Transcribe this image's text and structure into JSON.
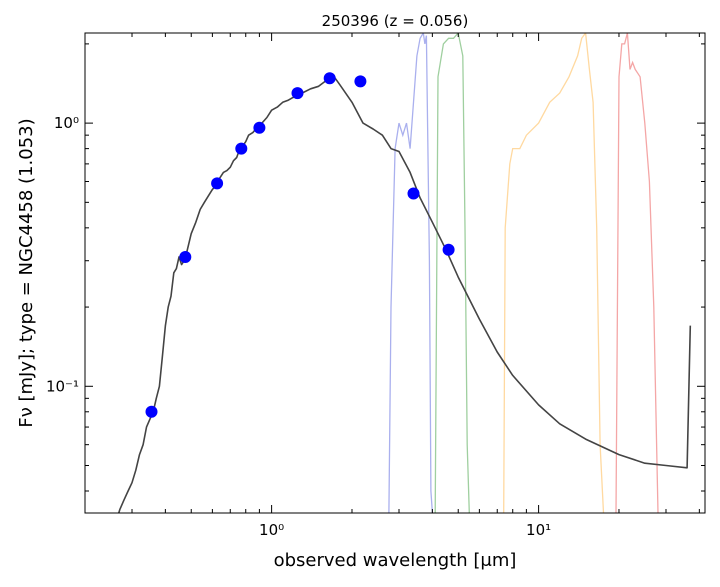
{
  "chart_data": {
    "type": "scatter",
    "title": "250396 (z = 0.056)",
    "xlabel": "observed wavelength [μm]",
    "ylabel": "Fν [mJy];  type = NGC4458 (1.053)",
    "xscale": "log",
    "yscale": "log",
    "xlim": [
      0.2,
      42
    ],
    "ylim": [
      0.033,
      2.2
    ],
    "x_ticks": [
      {
        "value": 1,
        "label": "10⁰"
      },
      {
        "value": 10,
        "label": "10¹"
      }
    ],
    "y_ticks": [
      {
        "value": 0.1,
        "label": "10⁻¹"
      },
      {
        "value": 1,
        "label": "10⁰"
      }
    ],
    "grid": false,
    "photometry": {
      "color": "#0000ff",
      "x": [
        0.355,
        0.475,
        0.625,
        0.77,
        0.9,
        1.25,
        1.65,
        2.15,
        3.4,
        4.6
      ],
      "y": [
        0.08,
        0.31,
        0.59,
        0.8,
        0.96,
        1.3,
        1.48,
        1.44,
        0.54,
        0.33
      ]
    },
    "sed_model": {
      "color": "#444444",
      "x": [
        0.26,
        0.27,
        0.28,
        0.29,
        0.3,
        0.31,
        0.32,
        0.33,
        0.34,
        0.35,
        0.36,
        0.37,
        0.38,
        0.39,
        0.4,
        0.41,
        0.42,
        0.43,
        0.44,
        0.45,
        0.46,
        0.47,
        0.48,
        0.5,
        0.52,
        0.54,
        0.56,
        0.58,
        0.6,
        0.62,
        0.64,
        0.66,
        0.68,
        0.7,
        0.72,
        0.74,
        0.76,
        0.78,
        0.8,
        0.82,
        0.85,
        0.88,
        0.92,
        0.96,
        1.0,
        1.05,
        1.1,
        1.15,
        1.2,
        1.3,
        1.4,
        1.5,
        1.6,
        1.65,
        1.7,
        1.8,
        2.0,
        2.2,
        2.4,
        2.6,
        2.8,
        3.0,
        3.3,
        3.6,
        4.0,
        4.5,
        5.0,
        6.0,
        7.0,
        8.0,
        10.0,
        12.0,
        15.0,
        20.0,
        25.0,
        30.0,
        36.0,
        37.0
      ],
      "y": [
        0.03,
        0.034,
        0.037,
        0.04,
        0.043,
        0.048,
        0.055,
        0.06,
        0.07,
        0.075,
        0.08,
        0.09,
        0.1,
        0.13,
        0.17,
        0.2,
        0.22,
        0.27,
        0.28,
        0.31,
        0.29,
        0.3,
        0.32,
        0.38,
        0.42,
        0.47,
        0.5,
        0.53,
        0.56,
        0.58,
        0.62,
        0.65,
        0.66,
        0.68,
        0.72,
        0.74,
        0.8,
        0.82,
        0.85,
        0.9,
        0.92,
        0.96,
        1.0,
        1.05,
        1.12,
        1.15,
        1.2,
        1.22,
        1.25,
        1.3,
        1.35,
        1.38,
        1.45,
        1.5,
        1.52,
        1.4,
        1.2,
        1.0,
        0.95,
        0.9,
        0.8,
        0.78,
        0.65,
        0.52,
        0.42,
        0.33,
        0.26,
        0.18,
        0.135,
        0.11,
        0.085,
        0.072,
        0.063,
        0.055,
        0.051,
        0.05,
        0.049,
        0.17
      ]
    },
    "filters": [
      {
        "color": "#aab0ee",
        "x": [
          2.75,
          2.8,
          2.9,
          3.0,
          3.1,
          3.2,
          3.3,
          3.4,
          3.5,
          3.6,
          3.7,
          3.75,
          3.8,
          3.9,
          3.95,
          4.0
        ],
        "y": [
          0.033,
          0.2,
          0.8,
          1.0,
          0.9,
          1.0,
          0.8,
          1.2,
          1.8,
          2.1,
          2.2,
          2.0,
          2.15,
          0.3,
          0.04,
          0.033
        ]
      },
      {
        "color": "#9fcf9f",
        "x": [
          4.1,
          4.2,
          4.4,
          4.6,
          4.8,
          5.0,
          5.2,
          5.3,
          5.4,
          5.5
        ],
        "y": [
          0.033,
          1.5,
          2.0,
          2.1,
          2.1,
          2.2,
          1.8,
          0.4,
          0.06,
          0.033
        ]
      },
      {
        "color": "#ffd9a0",
        "x": [
          7.4,
          7.5,
          7.8,
          8.0,
          8.5,
          9.0,
          10.0,
          11.0,
          12.0,
          13.0,
          14.0,
          14.5,
          15.0,
          15.5,
          16.0,
          16.5,
          17.0,
          17.5
        ],
        "y": [
          0.033,
          0.4,
          0.7,
          0.8,
          0.8,
          0.9,
          1.0,
          1.2,
          1.3,
          1.5,
          1.8,
          2.1,
          2.2,
          1.6,
          1.2,
          0.4,
          0.06,
          0.033
        ]
      },
      {
        "color": "#f4a6a6",
        "x": [
          19.5,
          20.0,
          20.5,
          21.0,
          21.5,
          22.0,
          22.5,
          23.0,
          24.0,
          25.0,
          26.0,
          27.0,
          28.0
        ],
        "y": [
          0.033,
          1.5,
          2.0,
          2.0,
          2.2,
          1.6,
          1.7,
          1.6,
          1.5,
          1.0,
          0.6,
          0.2,
          0.033
        ]
      }
    ]
  }
}
